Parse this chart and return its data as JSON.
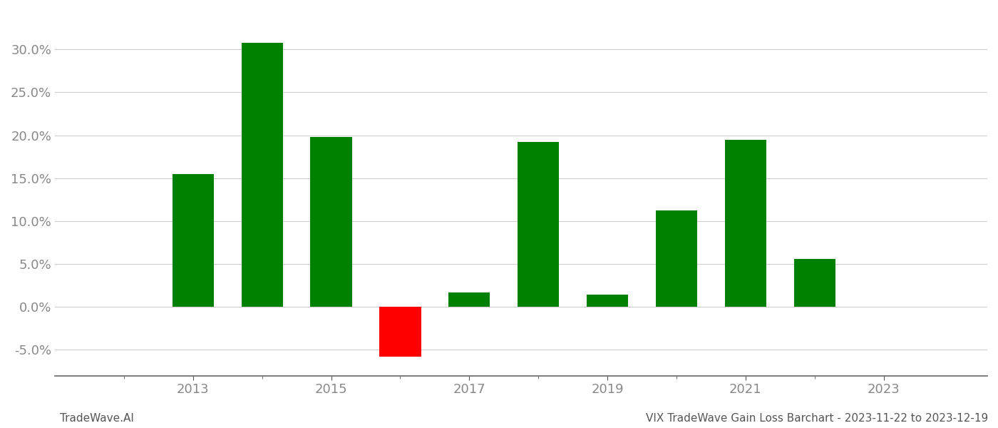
{
  "years": [
    2013,
    2014,
    2015,
    2016,
    2017,
    2018,
    2019,
    2020,
    2021,
    2022
  ],
  "values": [
    0.155,
    0.308,
    0.198,
    -0.058,
    0.017,
    0.192,
    0.014,
    0.112,
    0.195,
    0.056
  ],
  "colors": [
    "#008000",
    "#008000",
    "#008000",
    "#ff0000",
    "#008000",
    "#008000",
    "#008000",
    "#008000",
    "#008000",
    "#008000"
  ],
  "ylim": [
    -0.08,
    0.345
  ],
  "yticks": [
    -0.05,
    0.0,
    0.05,
    0.1,
    0.15,
    0.2,
    0.25,
    0.3
  ],
  "xlabel_ticks": [
    2013,
    2015,
    2017,
    2019,
    2021,
    2023
  ],
  "xlabel": "",
  "ylabel": "",
  "footer_left": "TradeWave.AI",
  "footer_right": "VIX TradeWave Gain Loss Barchart - 2023-11-22 to 2023-12-19",
  "background_color": "#ffffff",
  "grid_color": "#cccccc",
  "bar_width": 0.6,
  "tick_label_color": "#888888",
  "footer_font_size": 11,
  "xlim": [
    2011.0,
    2024.5
  ]
}
